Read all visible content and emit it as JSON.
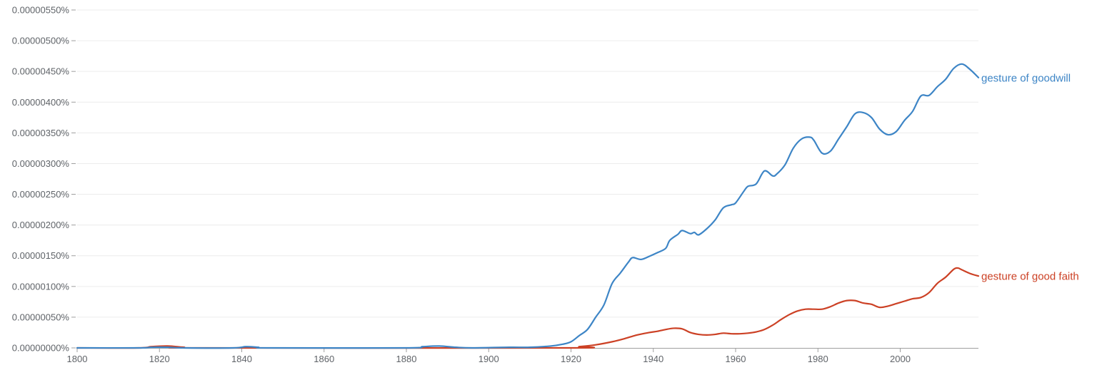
{
  "chart_data": {
    "type": "line",
    "title": "",
    "xlabel": "",
    "ylabel": "",
    "xlim": [
      1800,
      2019
    ],
    "ylim": [
      0,
      5.5e-06
    ],
    "x_ticks": [
      "1800",
      "1820",
      "1840",
      "1860",
      "1880",
      "1900",
      "1920",
      "1940",
      "1960",
      "1980",
      "2000"
    ],
    "y_ticks": [
      "0.00000000%",
      "0.00000050%",
      "0.00000100%",
      "0.00000150%",
      "0.00000200%",
      "0.00000250%",
      "0.00000300%",
      "0.00000350%",
      "0.00000400%",
      "0.00000450%",
      "0.00000500%",
      "0.00000550%"
    ],
    "grid": true,
    "legend": "line-end labels",
    "series": [
      {
        "name": "gesture of goodwill",
        "color": "#3d85c6",
        "points": [
          [
            1800,
            0
          ],
          [
            1815,
            0
          ],
          [
            1818,
            1e-08
          ],
          [
            1822,
            1e-08
          ],
          [
            1826,
            0
          ],
          [
            1838,
            0
          ],
          [
            1841,
            2e-08
          ],
          [
            1844,
            1e-08
          ],
          [
            1847,
            0
          ],
          [
            1880,
            0
          ],
          [
            1884,
            2e-08
          ],
          [
            1888,
            3e-08
          ],
          [
            1892,
            1e-08
          ],
          [
            1896,
            0
          ],
          [
            1905,
            1e-08
          ],
          [
            1910,
            1e-08
          ],
          [
            1915,
            3e-08
          ],
          [
            1918,
            6e-08
          ],
          [
            1920,
            1e-07
          ],
          [
            1922,
            2e-07
          ],
          [
            1924,
            3e-07
          ],
          [
            1926,
            5e-07
          ],
          [
            1928,
            7e-07
          ],
          [
            1930,
            1.05e-06
          ],
          [
            1932,
            1.22e-06
          ],
          [
            1934,
            1.4e-06
          ],
          [
            1935,
            1.47e-06
          ],
          [
            1937,
            1.44e-06
          ],
          [
            1939,
            1.49e-06
          ],
          [
            1941,
            1.55e-06
          ],
          [
            1943,
            1.62e-06
          ],
          [
            1944,
            1.75e-06
          ],
          [
            1946,
            1.85e-06
          ],
          [
            1947,
            1.91e-06
          ],
          [
            1949,
            1.86e-06
          ],
          [
            1950,
            1.88e-06
          ],
          [
            1951,
            1.84e-06
          ],
          [
            1953,
            1.94e-06
          ],
          [
            1955,
            2.08e-06
          ],
          [
            1957,
            2.28e-06
          ],
          [
            1959,
            2.33e-06
          ],
          [
            1960,
            2.36e-06
          ],
          [
            1962,
            2.55e-06
          ],
          [
            1963,
            2.63e-06
          ],
          [
            1965,
            2.67e-06
          ],
          [
            1967,
            2.88e-06
          ],
          [
            1969,
            2.8e-06
          ],
          [
            1970,
            2.83e-06
          ],
          [
            1972,
            2.98e-06
          ],
          [
            1974,
            3.25e-06
          ],
          [
            1976,
            3.4e-06
          ],
          [
            1978,
            3.43e-06
          ],
          [
            1979,
            3.38e-06
          ],
          [
            1981,
            3.17e-06
          ],
          [
            1983,
            3.2e-06
          ],
          [
            1985,
            3.4e-06
          ],
          [
            1987,
            3.6e-06
          ],
          [
            1989,
            3.81e-06
          ],
          [
            1991,
            3.83e-06
          ],
          [
            1993,
            3.75e-06
          ],
          [
            1995,
            3.56e-06
          ],
          [
            1997,
            3.47e-06
          ],
          [
            1999,
            3.52e-06
          ],
          [
            2001,
            3.7e-06
          ],
          [
            2003,
            3.85e-06
          ],
          [
            2005,
            4.1e-06
          ],
          [
            2007,
            4.11e-06
          ],
          [
            2009,
            4.25e-06
          ],
          [
            2011,
            4.37e-06
          ],
          [
            2013,
            4.55e-06
          ],
          [
            2015,
            4.62e-06
          ],
          [
            2017,
            4.53e-06
          ],
          [
            2019,
            4.4e-06
          ]
        ]
      },
      {
        "name": "gesture of good faith",
        "color": "#cc4125",
        "points": [
          [
            1800,
            0
          ],
          [
            1815,
            0
          ],
          [
            1818,
            2e-08
          ],
          [
            1822,
            3e-08
          ],
          [
            1826,
            1e-08
          ],
          [
            1830,
            0
          ],
          [
            1918,
            0
          ],
          [
            1922,
            2e-08
          ],
          [
            1926,
            5e-08
          ],
          [
            1930,
            1e-07
          ],
          [
            1933,
            1.5e-07
          ],
          [
            1936,
            2.1e-07
          ],
          [
            1939,
            2.5e-07
          ],
          [
            1941,
            2.7e-07
          ],
          [
            1943,
            3e-07
          ],
          [
            1945,
            3.2e-07
          ],
          [
            1947,
            3.1e-07
          ],
          [
            1949,
            2.5e-07
          ],
          [
            1951,
            2.2e-07
          ],
          [
            1953,
            2.1e-07
          ],
          [
            1955,
            2.2e-07
          ],
          [
            1957,
            2.4e-07
          ],
          [
            1959,
            2.3e-07
          ],
          [
            1961,
            2.3e-07
          ],
          [
            1963,
            2.4e-07
          ],
          [
            1965,
            2.6e-07
          ],
          [
            1967,
            3e-07
          ],
          [
            1969,
            3.7e-07
          ],
          [
            1971,
            4.6e-07
          ],
          [
            1973,
            5.4e-07
          ],
          [
            1975,
            6e-07
          ],
          [
            1977,
            6.3e-07
          ],
          [
            1979,
            6.3e-07
          ],
          [
            1981,
            6.3e-07
          ],
          [
            1983,
            6.7e-07
          ],
          [
            1985,
            7.3e-07
          ],
          [
            1987,
            7.7e-07
          ],
          [
            1989,
            7.7e-07
          ],
          [
            1991,
            7.3e-07
          ],
          [
            1993,
            7.1e-07
          ],
          [
            1995,
            6.6e-07
          ],
          [
            1997,
            6.8e-07
          ],
          [
            1999,
            7.2e-07
          ],
          [
            2001,
            7.6e-07
          ],
          [
            2003,
            8e-07
          ],
          [
            2005,
            8.2e-07
          ],
          [
            2007,
            9e-07
          ],
          [
            2009,
            1.05e-06
          ],
          [
            2011,
            1.15e-06
          ],
          [
            2013,
            1.28e-06
          ],
          [
            2014,
            1.3e-06
          ],
          [
            2015,
            1.27e-06
          ],
          [
            2017,
            1.21e-06
          ],
          [
            2019,
            1.17e-06
          ]
        ]
      }
    ]
  }
}
